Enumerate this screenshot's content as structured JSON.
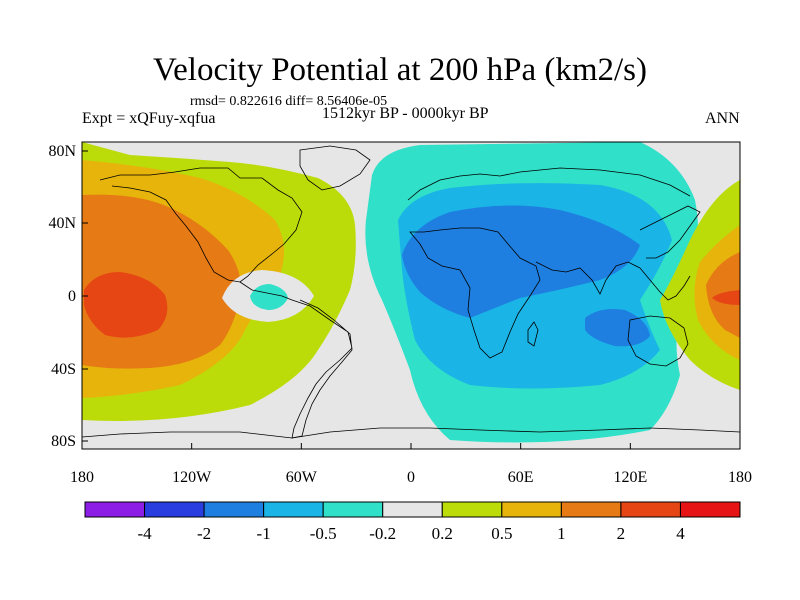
{
  "title": "Velocity Potential at 200 hPa (km2/s)",
  "stats": "rmsd= 0.822616 diff= 8.56406e-05",
  "left_label": "Expt = xQFuy-xqfua",
  "center_label": "1512kyr BP - 0000kyr BP",
  "right_label": "ANN",
  "lat_ticks": [
    "80N",
    "40N",
    "0",
    "40S",
    "80S"
  ],
  "lon_ticks": [
    "180",
    "120W",
    "60W",
    "0",
    "60E",
    "120E",
    "180"
  ],
  "colorbar": {
    "boundaries": [
      "-4",
      "-2",
      "-1",
      "-0.5",
      "-0.2",
      "0.2",
      "0.5",
      "1",
      "2",
      "4"
    ],
    "colors": [
      "#8c1ee6",
      "#2a3ee0",
      "#1f7fe0",
      "#1ab4e6",
      "#30e0c8",
      "#e6e6e6",
      "#bcdc0a",
      "#e6b40a",
      "#e67a14",
      "#e64614",
      "#e61414"
    ]
  },
  "palette": {
    "neutral": "#e6e6e6",
    "pos_02": "#bcdc0a",
    "pos_05": "#e6b40a",
    "pos_1": "#e67a14",
    "pos_2": "#e64614",
    "neg_02": "#30e0c8",
    "neg_05": "#1ab4e6",
    "neg_1": "#1f7fe0"
  }
}
